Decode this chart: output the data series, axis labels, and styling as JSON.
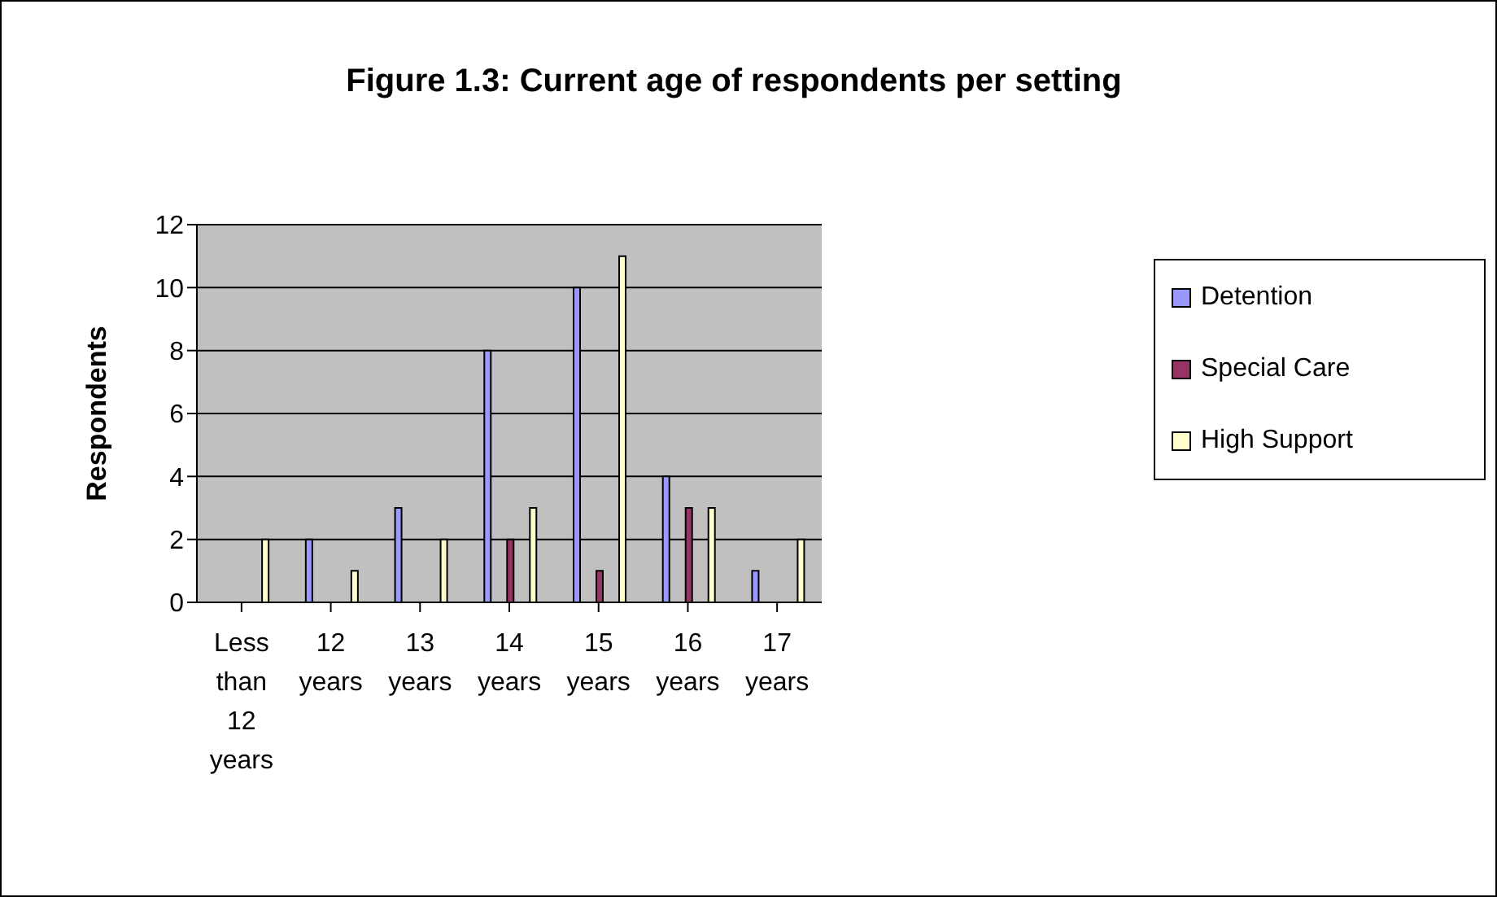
{
  "chart_data": {
    "type": "bar",
    "title": "Figure 1.3:   Current age of respondents per setting",
    "ylabel": "Respondents",
    "categories": [
      "Less than 12 years",
      "12 years",
      "13 years",
      "14 years",
      "15 years",
      "16 years",
      "17 years"
    ],
    "series": [
      {
        "name": "Detention",
        "color": "#9999ff",
        "values": [
          0,
          2,
          3,
          8,
          10,
          4,
          1
        ]
      },
      {
        "name": "Special Care",
        "color": "#993366",
        "values": [
          0,
          0,
          0,
          2,
          1,
          3,
          0
        ]
      },
      {
        "name": "High Support",
        "color": "#ffffcc",
        "values": [
          2,
          1,
          2,
          3,
          11,
          3,
          2
        ]
      }
    ],
    "ylim": [
      0,
      12
    ],
    "yticks": [
      0,
      2,
      4,
      6,
      8,
      10,
      12
    ],
    "grid": "y",
    "legend": "right"
  }
}
